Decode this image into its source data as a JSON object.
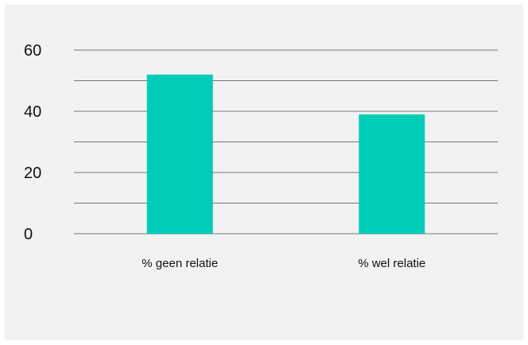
{
  "chart_data": {
    "type": "bar",
    "categories": [
      "% geen relatie",
      "% wel relatie"
    ],
    "values": [
      52,
      39
    ],
    "ylim": [
      0,
      60
    ],
    "yticks": [
      0,
      20,
      40,
      60
    ],
    "gridlines": [
      0,
      10,
      20,
      30,
      40,
      50,
      60
    ],
    "grid": true,
    "legend": "none",
    "colors": {
      "bar": "#00cdb8",
      "grid": "#777777",
      "background": "#f2f2f2",
      "text": "#111111"
    }
  }
}
